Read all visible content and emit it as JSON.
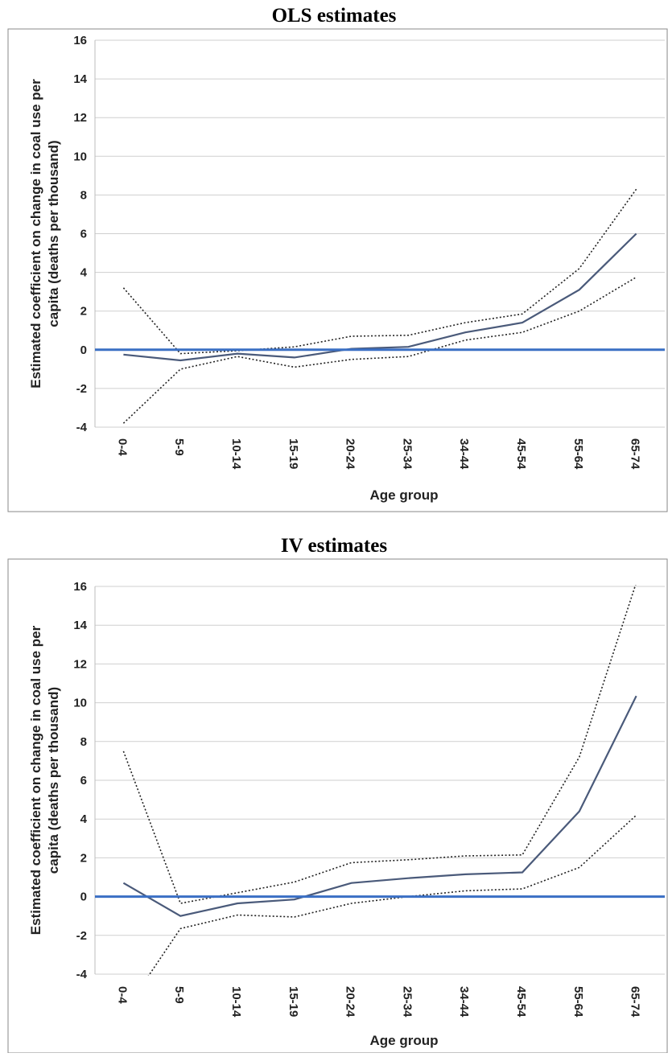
{
  "chart_data": [
    {
      "type": "line",
      "title": "OLS estimates",
      "xlabel": "Age group",
      "ylabel_line1": "Estimated coefficient on change in coal use per",
      "ylabel_line2": "capita (deaths per thousand)",
      "ylim": [
        -4,
        16
      ],
      "yticks": [
        -4,
        -2,
        0,
        2,
        4,
        6,
        8,
        10,
        12,
        14,
        16
      ],
      "grid": true,
      "categories": [
        "0-4",
        "5-9",
        "10-14",
        "15-19",
        "20-24",
        "25-34",
        "34-44",
        "45-54",
        "55-64",
        "65-74"
      ],
      "series": [
        {
          "style": "estimate",
          "values": [
            -0.25,
            -0.55,
            -0.2,
            -0.4,
            0.05,
            0.15,
            0.9,
            1.4,
            3.1,
            6.0
          ]
        },
        {
          "style": "upper-ci",
          "values": [
            3.2,
            -0.2,
            -0.05,
            0.15,
            0.7,
            0.75,
            1.4,
            1.85,
            4.2,
            8.3
          ]
        },
        {
          "style": "lower-ci",
          "values": [
            -3.8,
            -1.0,
            -0.35,
            -0.9,
            -0.5,
            -0.35,
            0.5,
            0.9,
            2.0,
            3.75
          ]
        },
        {
          "style": "zero-line",
          "values": [
            0,
            0,
            0,
            0,
            0,
            0,
            0,
            0,
            0,
            0
          ]
        }
      ],
      "colors": {
        "estimate": "#4a5a7a",
        "ci": "#222222",
        "zero": "#3a6fc4",
        "grid": "#cfcfcf"
      }
    },
    {
      "type": "line",
      "title": "IV estimates",
      "xlabel": "Age group",
      "ylabel_line1": "Estimated coefficient on change in coal use per",
      "ylabel_line2": "capita (deaths per thousand)",
      "ylim": [
        -4,
        16
      ],
      "yticks": [
        -4,
        -2,
        0,
        2,
        4,
        6,
        8,
        10,
        12,
        14,
        16
      ],
      "grid": true,
      "categories": [
        "0-4",
        "5-9",
        "10-14",
        "15-19",
        "20-24",
        "25-34",
        "34-44",
        "45-54",
        "55-64",
        "65-74"
      ],
      "series": [
        {
          "style": "estimate",
          "values": [
            0.7,
            -1.0,
            -0.35,
            -0.15,
            0.7,
            0.95,
            1.15,
            1.25,
            4.4,
            10.35
          ]
        },
        {
          "style": "upper-ci",
          "values": [
            7.5,
            -0.35,
            0.2,
            0.75,
            1.75,
            1.9,
            2.1,
            2.15,
            7.2,
            16.2
          ]
        },
        {
          "style": "lower-ci",
          "values": [
            -6.0,
            -1.65,
            -0.95,
            -1.05,
            -0.35,
            0.0,
            0.3,
            0.4,
            1.5,
            4.2
          ]
        },
        {
          "style": "zero-line",
          "values": [
            0,
            0,
            0,
            0,
            0,
            0,
            0,
            0,
            0,
            0
          ]
        }
      ],
      "colors": {
        "estimate": "#4a5a7a",
        "ci": "#222222",
        "zero": "#3a6fc4",
        "grid": "#cfcfcf"
      }
    }
  ]
}
